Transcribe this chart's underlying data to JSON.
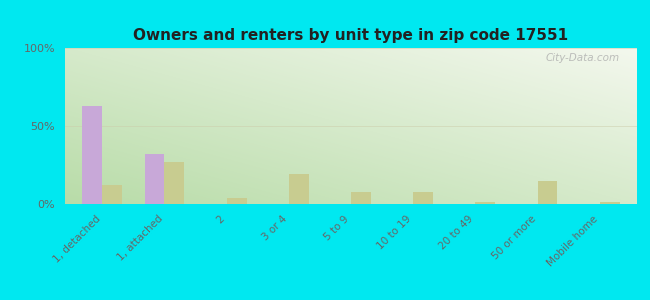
{
  "title": "Owners and renters by unit type in zip code 17551",
  "categories": [
    "1, detached",
    "1, attached",
    "2",
    "3 or 4",
    "5 to 9",
    "10 to 19",
    "20 to 49",
    "50 or more",
    "Mobile home"
  ],
  "owner_values": [
    63,
    32,
    0,
    0,
    0,
    0,
    0,
    0,
    0
  ],
  "renter_values": [
    12,
    27,
    4,
    19,
    8,
    8,
    1,
    15,
    1
  ],
  "owner_color": "#c8a8d8",
  "renter_color": "#c8cc90",
  "plot_bg_topleft": "#b8dca8",
  "plot_bg_bottomright": "#f4f8ee",
  "ylim": [
    0,
    100
  ],
  "yticks": [
    0,
    50,
    100
  ],
  "ytick_labels": [
    "0%",
    "50%",
    "100%"
  ],
  "watermark": "City-Data.com",
  "figure_bg": "#00e8f0",
  "bar_width": 0.32
}
